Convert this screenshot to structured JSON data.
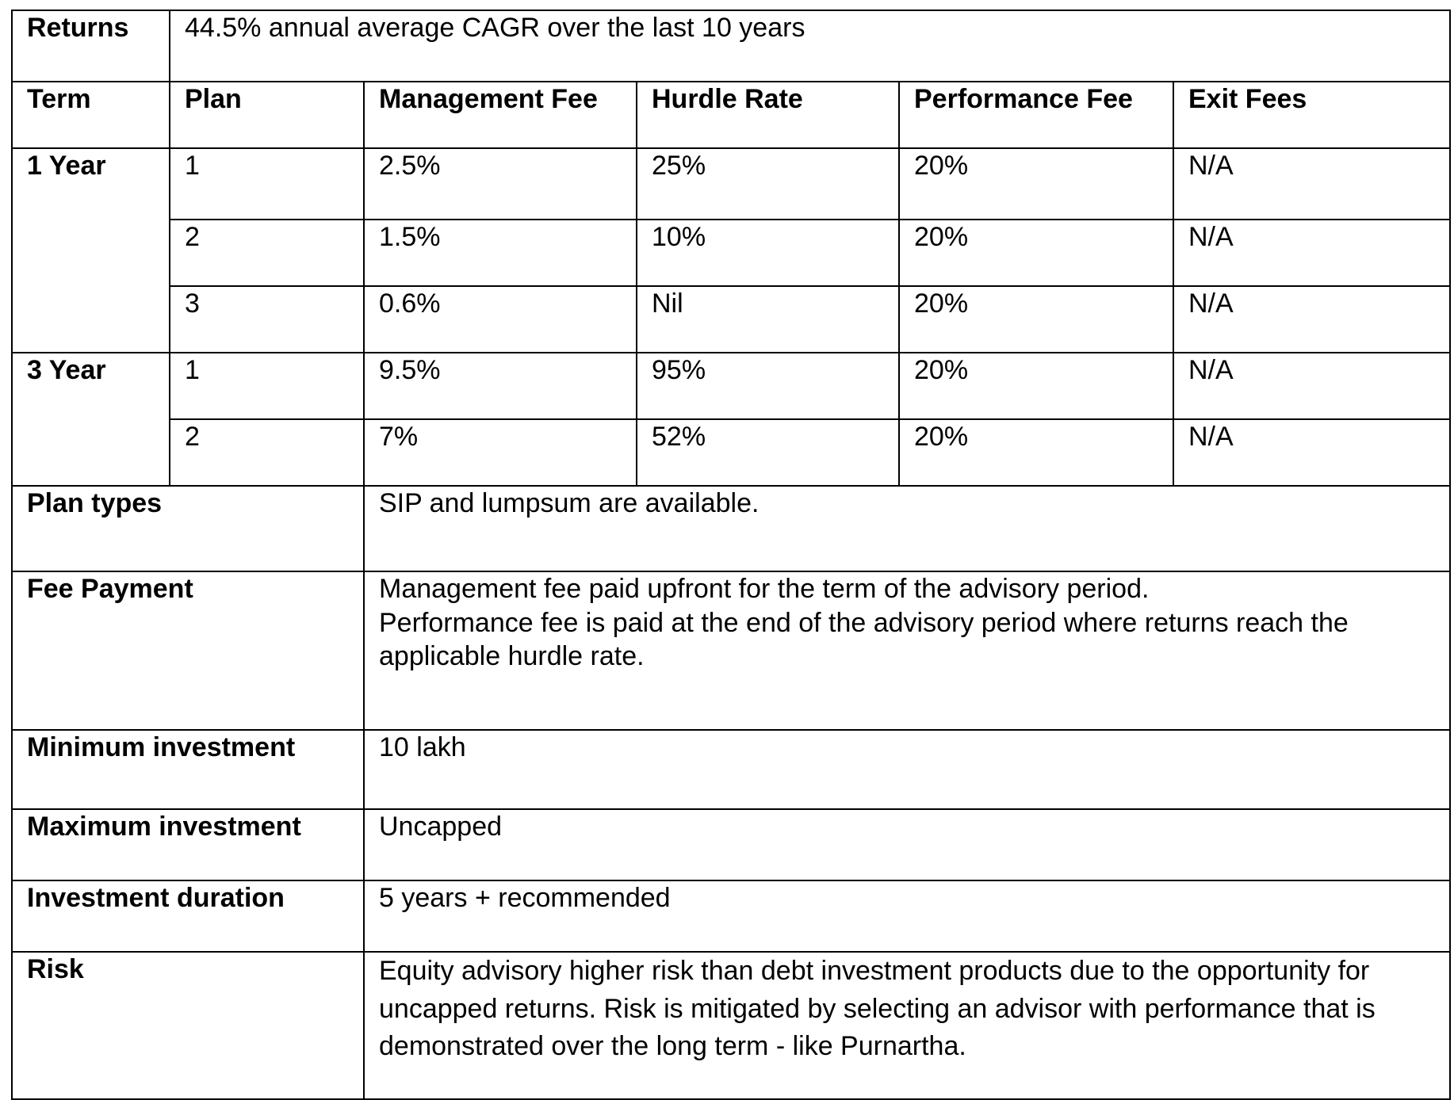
{
  "returns": {
    "label": "Returns",
    "value": "44.5% annual average CAGR over the last 10 years"
  },
  "fee_table": {
    "headers": [
      "Term",
      "Plan",
      "Management Fee",
      "Hurdle Rate",
      "Performance Fee",
      "Exit Fees"
    ],
    "groups": [
      {
        "term": "1 Year",
        "rows": [
          {
            "plan": "1",
            "management_fee": "2.5%",
            "hurdle_rate": "25%",
            "performance_fee": "20%",
            "exit_fees": "N/A"
          },
          {
            "plan": "2",
            "management_fee": "1.5%",
            "hurdle_rate": "10%",
            "performance_fee": "20%",
            "exit_fees": "N/A"
          },
          {
            "plan": "3",
            "management_fee": "0.6%",
            "hurdle_rate": "Nil",
            "performance_fee": "20%",
            "exit_fees": "N/A"
          }
        ]
      },
      {
        "term": "3 Year",
        "rows": [
          {
            "plan": "1",
            "management_fee": "9.5%",
            "hurdle_rate": "95%",
            "performance_fee": "20%",
            "exit_fees": "N/A"
          },
          {
            "plan": "2",
            "management_fee": "7%",
            "hurdle_rate": "52%",
            "performance_fee": "20%",
            "exit_fees": "N/A"
          }
        ]
      }
    ]
  },
  "plan_types": {
    "label": "Plan types",
    "value": "SIP and lumpsum are available."
  },
  "fee_payment": {
    "label": "Fee Payment",
    "lines": [
      "Management fee paid upfront for the term of the advisory period.",
      "Performance fee is paid at the end of the advisory period where returns reach the applicable hurdle rate."
    ]
  },
  "minimum_investment": {
    "label": "Minimum investment",
    "value": "10 lakh"
  },
  "maximum_investment": {
    "label": "Maximum investment",
    "value": "Uncapped"
  },
  "investment_duration": {
    "label": "Investment duration",
    "value": "5 years + recommended"
  },
  "risk": {
    "label": "Risk",
    "value": "Equity advisory higher risk than debt investment products due to the opportunity for uncapped returns. Risk is mitigated by selecting an advisor with performance that is demonstrated over the long term - like Purnartha."
  }
}
